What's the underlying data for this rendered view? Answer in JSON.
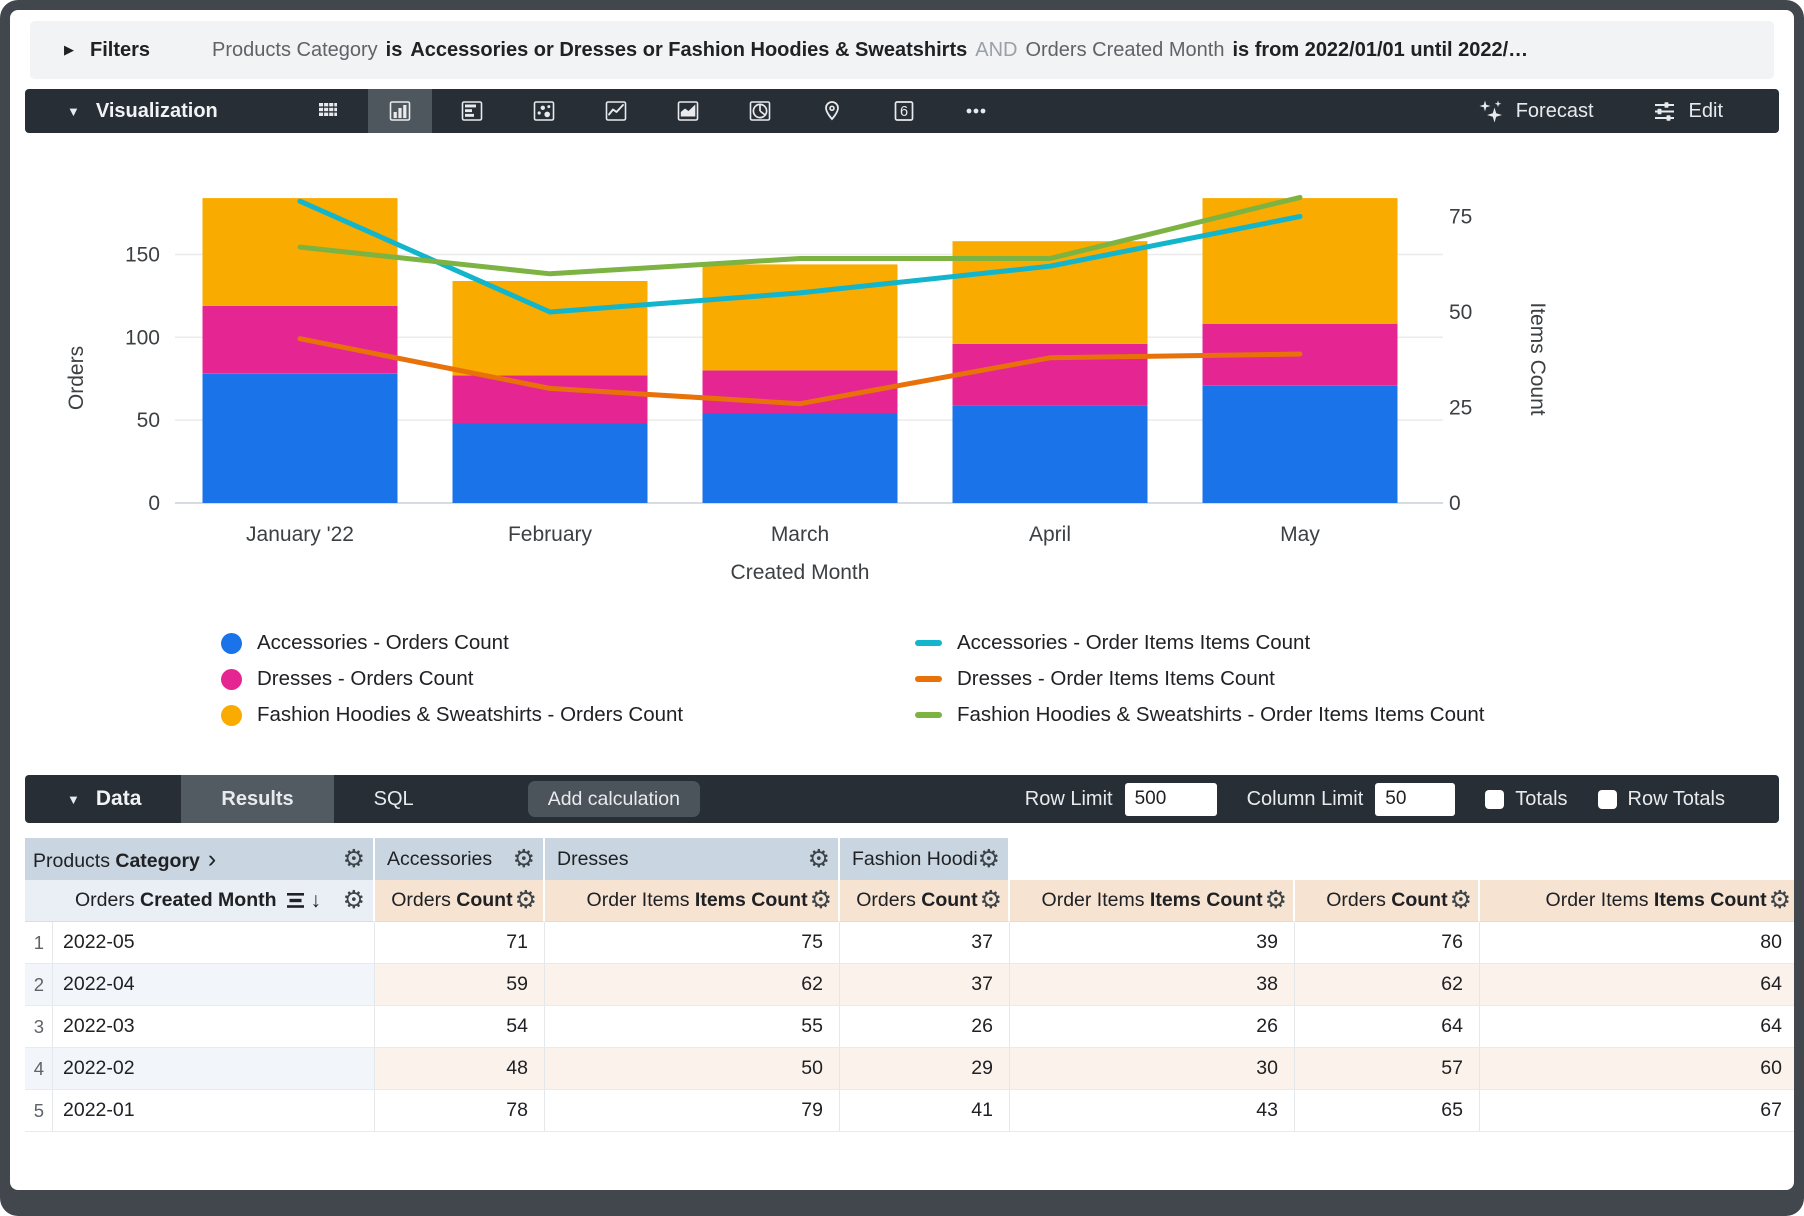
{
  "filters_bar": {
    "label": "Filters",
    "segments": [
      {
        "text": "Products Category",
        "style": "muted"
      },
      {
        "text": "is",
        "style": "strong"
      },
      {
        "text": "Accessories or Dresses or Fashion Hoodies & Sweatshirts",
        "style": "strong"
      },
      {
        "text": "AND",
        "style": "and"
      },
      {
        "text": "Orders Created Month",
        "style": "muted"
      },
      {
        "text": "is from 2022/01/01 until 2022/…",
        "style": "strong"
      }
    ]
  },
  "viz_toolbar": {
    "label": "Visualization",
    "icons": [
      {
        "name": "table-chart-icon",
        "selected": false
      },
      {
        "name": "column-chart-icon",
        "selected": true
      },
      {
        "name": "bar-chart-icon",
        "selected": false
      },
      {
        "name": "scatter-chart-icon",
        "selected": false
      },
      {
        "name": "line-chart-icon",
        "selected": false
      },
      {
        "name": "area-chart-icon",
        "selected": false
      },
      {
        "name": "pie-chart-icon",
        "selected": false
      },
      {
        "name": "map-pin-icon",
        "selected": false
      },
      {
        "name": "single-value-icon",
        "glyph": "6",
        "selected": false
      },
      {
        "name": "more-icon",
        "selected": false
      }
    ],
    "forecast_label": "Forecast",
    "edit_label": "Edit"
  },
  "chart_data": {
    "type": "combo",
    "subtype": "stacked-bar + lines, dual axis",
    "categories": [
      "January '22",
      "February",
      "March",
      "April",
      "May"
    ],
    "bar_series": [
      {
        "name": "Accessories - Orders Count",
        "color": "#1A73E8",
        "values": [
          78,
          48,
          54,
          59,
          71
        ]
      },
      {
        "name": "Dresses - Orders Count",
        "color": "#E52592",
        "values": [
          41,
          29,
          26,
          37,
          37
        ]
      },
      {
        "name": "Fashion Hoodies & Sweatshirts - Orders Count",
        "color": "#F9AB00",
        "values": [
          65,
          57,
          64,
          62,
          76
        ]
      }
    ],
    "line_series": [
      {
        "name": "Accessories - Order Items Items Count",
        "color": "#12B5CB",
        "values": [
          79,
          50,
          55,
          62,
          75
        ]
      },
      {
        "name": "Dresses - Order Items Items Count",
        "color": "#E8710A",
        "values": [
          43,
          30,
          26,
          38,
          39
        ]
      },
      {
        "name": "Fashion Hoodies & Sweatshirts - Order Items Items Count",
        "color": "#7CB342",
        "values": [
          67,
          60,
          64,
          64,
          80
        ]
      }
    ],
    "left_axis": {
      "label": "Orders",
      "ticks": [
        0,
        50,
        100,
        150
      ]
    },
    "right_axis": {
      "label": "Items Count",
      "ticks": [
        0,
        25,
        50,
        75
      ]
    },
    "xlabel": "Created Month",
    "grid": true,
    "legend_position": "bottom"
  },
  "data_panel": {
    "label": "Data",
    "tabs": [
      {
        "label": "Results",
        "active": true
      },
      {
        "label": "SQL",
        "active": false
      }
    ],
    "add_calculation_label": "Add calculation",
    "row_limit": {
      "label": "Row Limit",
      "value": "500"
    },
    "column_limit": {
      "label": "Column Limit",
      "value": "50"
    },
    "totals": {
      "label": "Totals",
      "checked": false
    },
    "row_totals": {
      "label": "Row Totals",
      "checked": false
    }
  },
  "table": {
    "dimension_group": {
      "plain": "Products ",
      "bold": "Category",
      "chevron": "›"
    },
    "dimension_col": {
      "plain": "Orders ",
      "bold": "Created Month"
    },
    "groups": [
      {
        "label": "Accessories"
      },
      {
        "label": "Dresses"
      },
      {
        "label": "Fashion Hoodies & Sweatshirts"
      }
    ],
    "measure_cols": [
      {
        "plain": "Orders ",
        "bold": "Count"
      },
      {
        "plain": "Order Items ",
        "bold": "Items Count"
      }
    ],
    "rows": [
      {
        "n": 1,
        "month": "2022-05",
        "values": [
          71,
          75,
          37,
          39,
          76,
          80
        ]
      },
      {
        "n": 2,
        "month": "2022-04",
        "values": [
          59,
          62,
          37,
          38,
          62,
          64
        ]
      },
      {
        "n": 3,
        "month": "2022-03",
        "values": [
          54,
          55,
          26,
          26,
          64,
          64
        ]
      },
      {
        "n": 4,
        "month": "2022-02",
        "values": [
          48,
          50,
          29,
          30,
          57,
          60
        ]
      },
      {
        "n": 5,
        "month": "2022-01",
        "values": [
          78,
          79,
          41,
          43,
          65,
          67
        ]
      }
    ]
  }
}
